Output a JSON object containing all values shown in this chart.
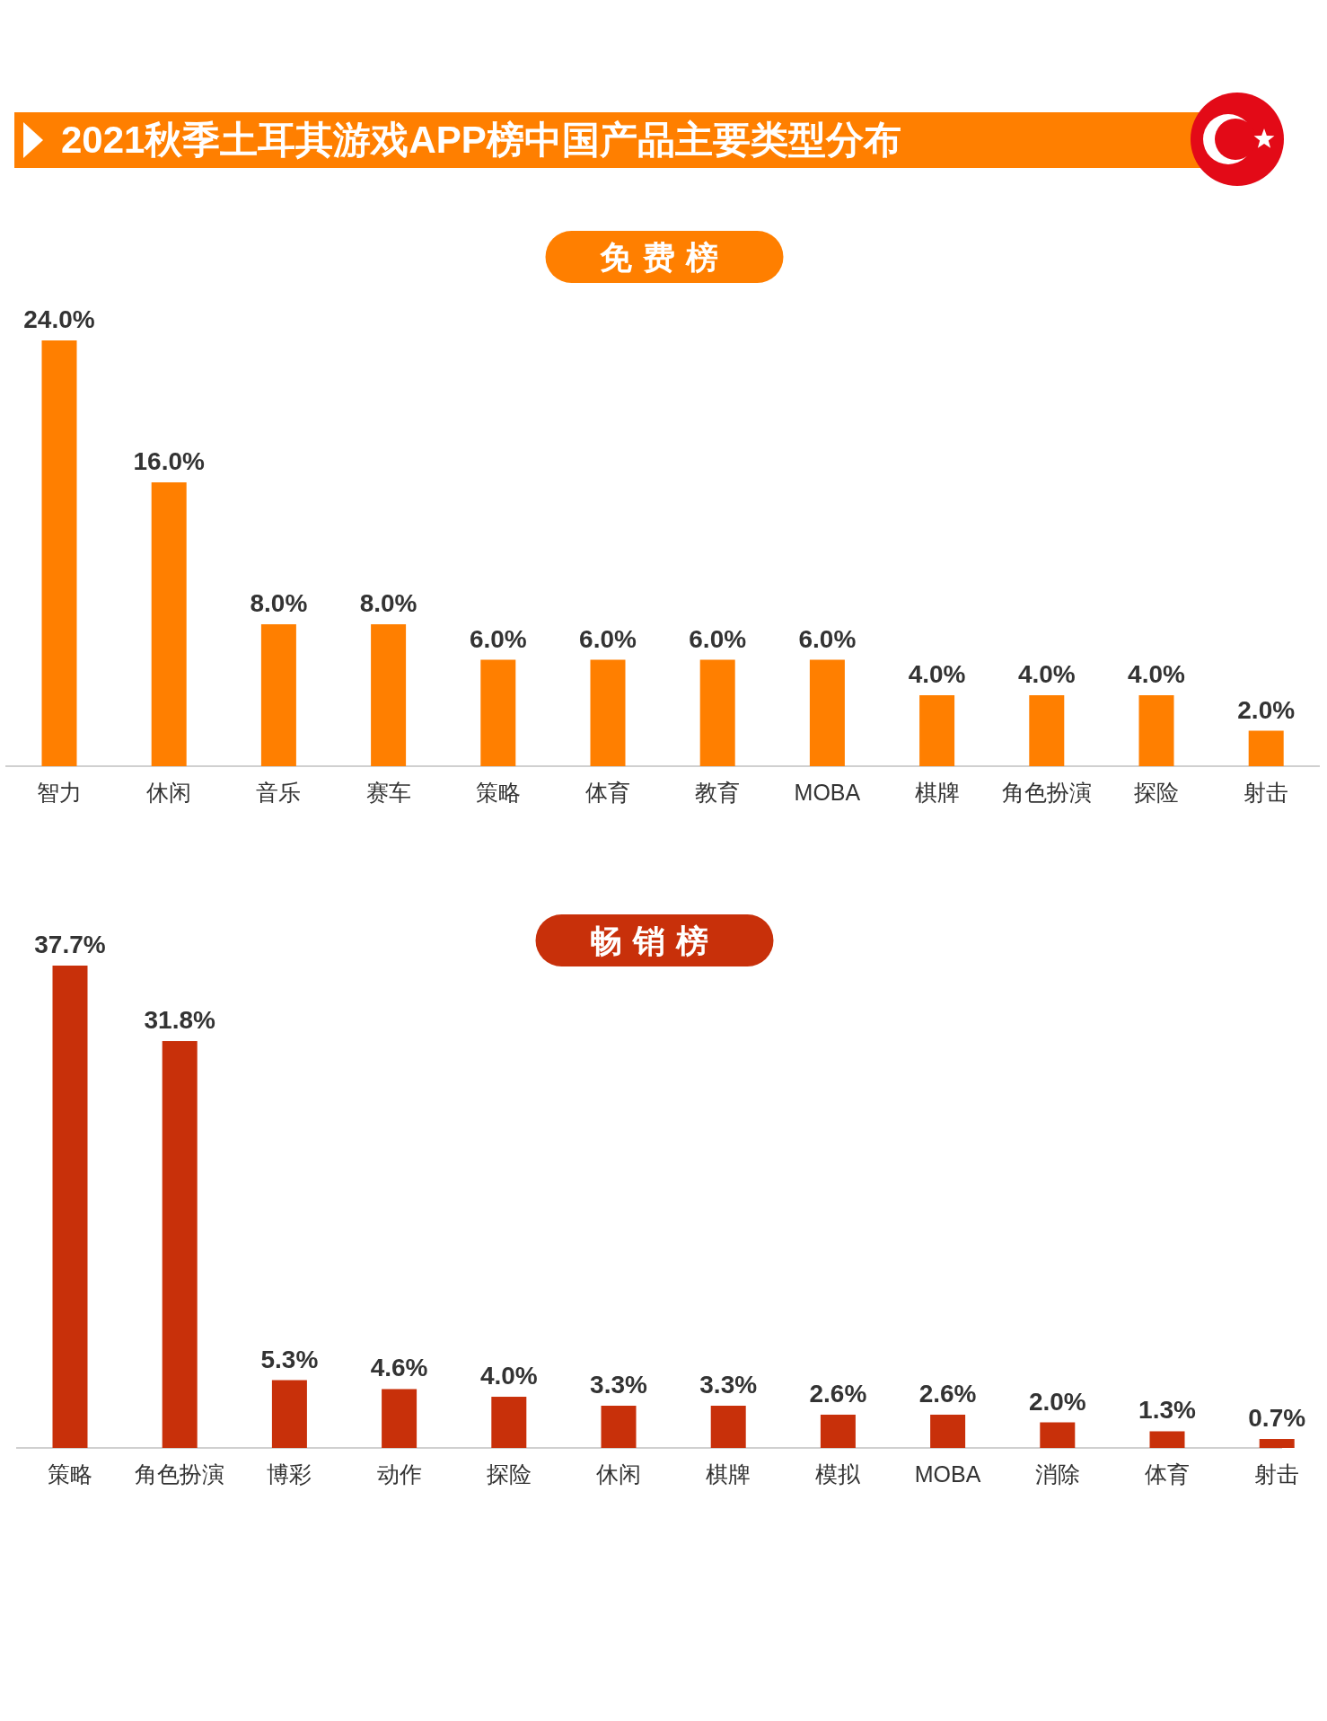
{
  "chart_data": [
    {
      "type": "bar",
      "title": "2021秋季土耳其游戏APP榜中国产品主要类型分布",
      "subtitle": "免费榜",
      "categories": [
        "智力",
        "休闲",
        "音乐",
        "赛车",
        "策略",
        "体育",
        "教育",
        "MOBA",
        "棋牌",
        "角色扮演",
        "探险",
        "射击"
      ],
      "values": [
        24.0,
        16.0,
        8.0,
        8.0,
        6.0,
        6.0,
        6.0,
        6.0,
        4.0,
        4.0,
        4.0,
        2.0
      ],
      "value_labels": [
        "24.0%",
        "16.0%",
        "8.0%",
        "8.0%",
        "6.0%",
        "6.0%",
        "6.0%",
        "6.0%",
        "4.0%",
        "4.0%",
        "4.0%",
        "2.0%"
      ],
      "color": "#ff7f00"
    },
    {
      "type": "bar",
      "title": "畅销榜",
      "categories": [
        "策略",
        "角色扮演",
        "博彩",
        "动作",
        "探险",
        "休闲",
        "棋牌",
        "模拟",
        "MOBA",
        "消除",
        "体育",
        "射击"
      ],
      "values": [
        37.7,
        31.8,
        5.3,
        4.6,
        4.0,
        3.3,
        3.3,
        2.6,
        2.6,
        2.0,
        1.3,
        0.7
      ],
      "value_labels": [
        "37.7%",
        "31.8%",
        "5.3%",
        "4.6%",
        "4.0%",
        "3.3%",
        "3.3%",
        "2.6%",
        "2.6%",
        "2.0%",
        "1.3%",
        "0.7%"
      ],
      "color": "#c8300a"
    }
  ]
}
